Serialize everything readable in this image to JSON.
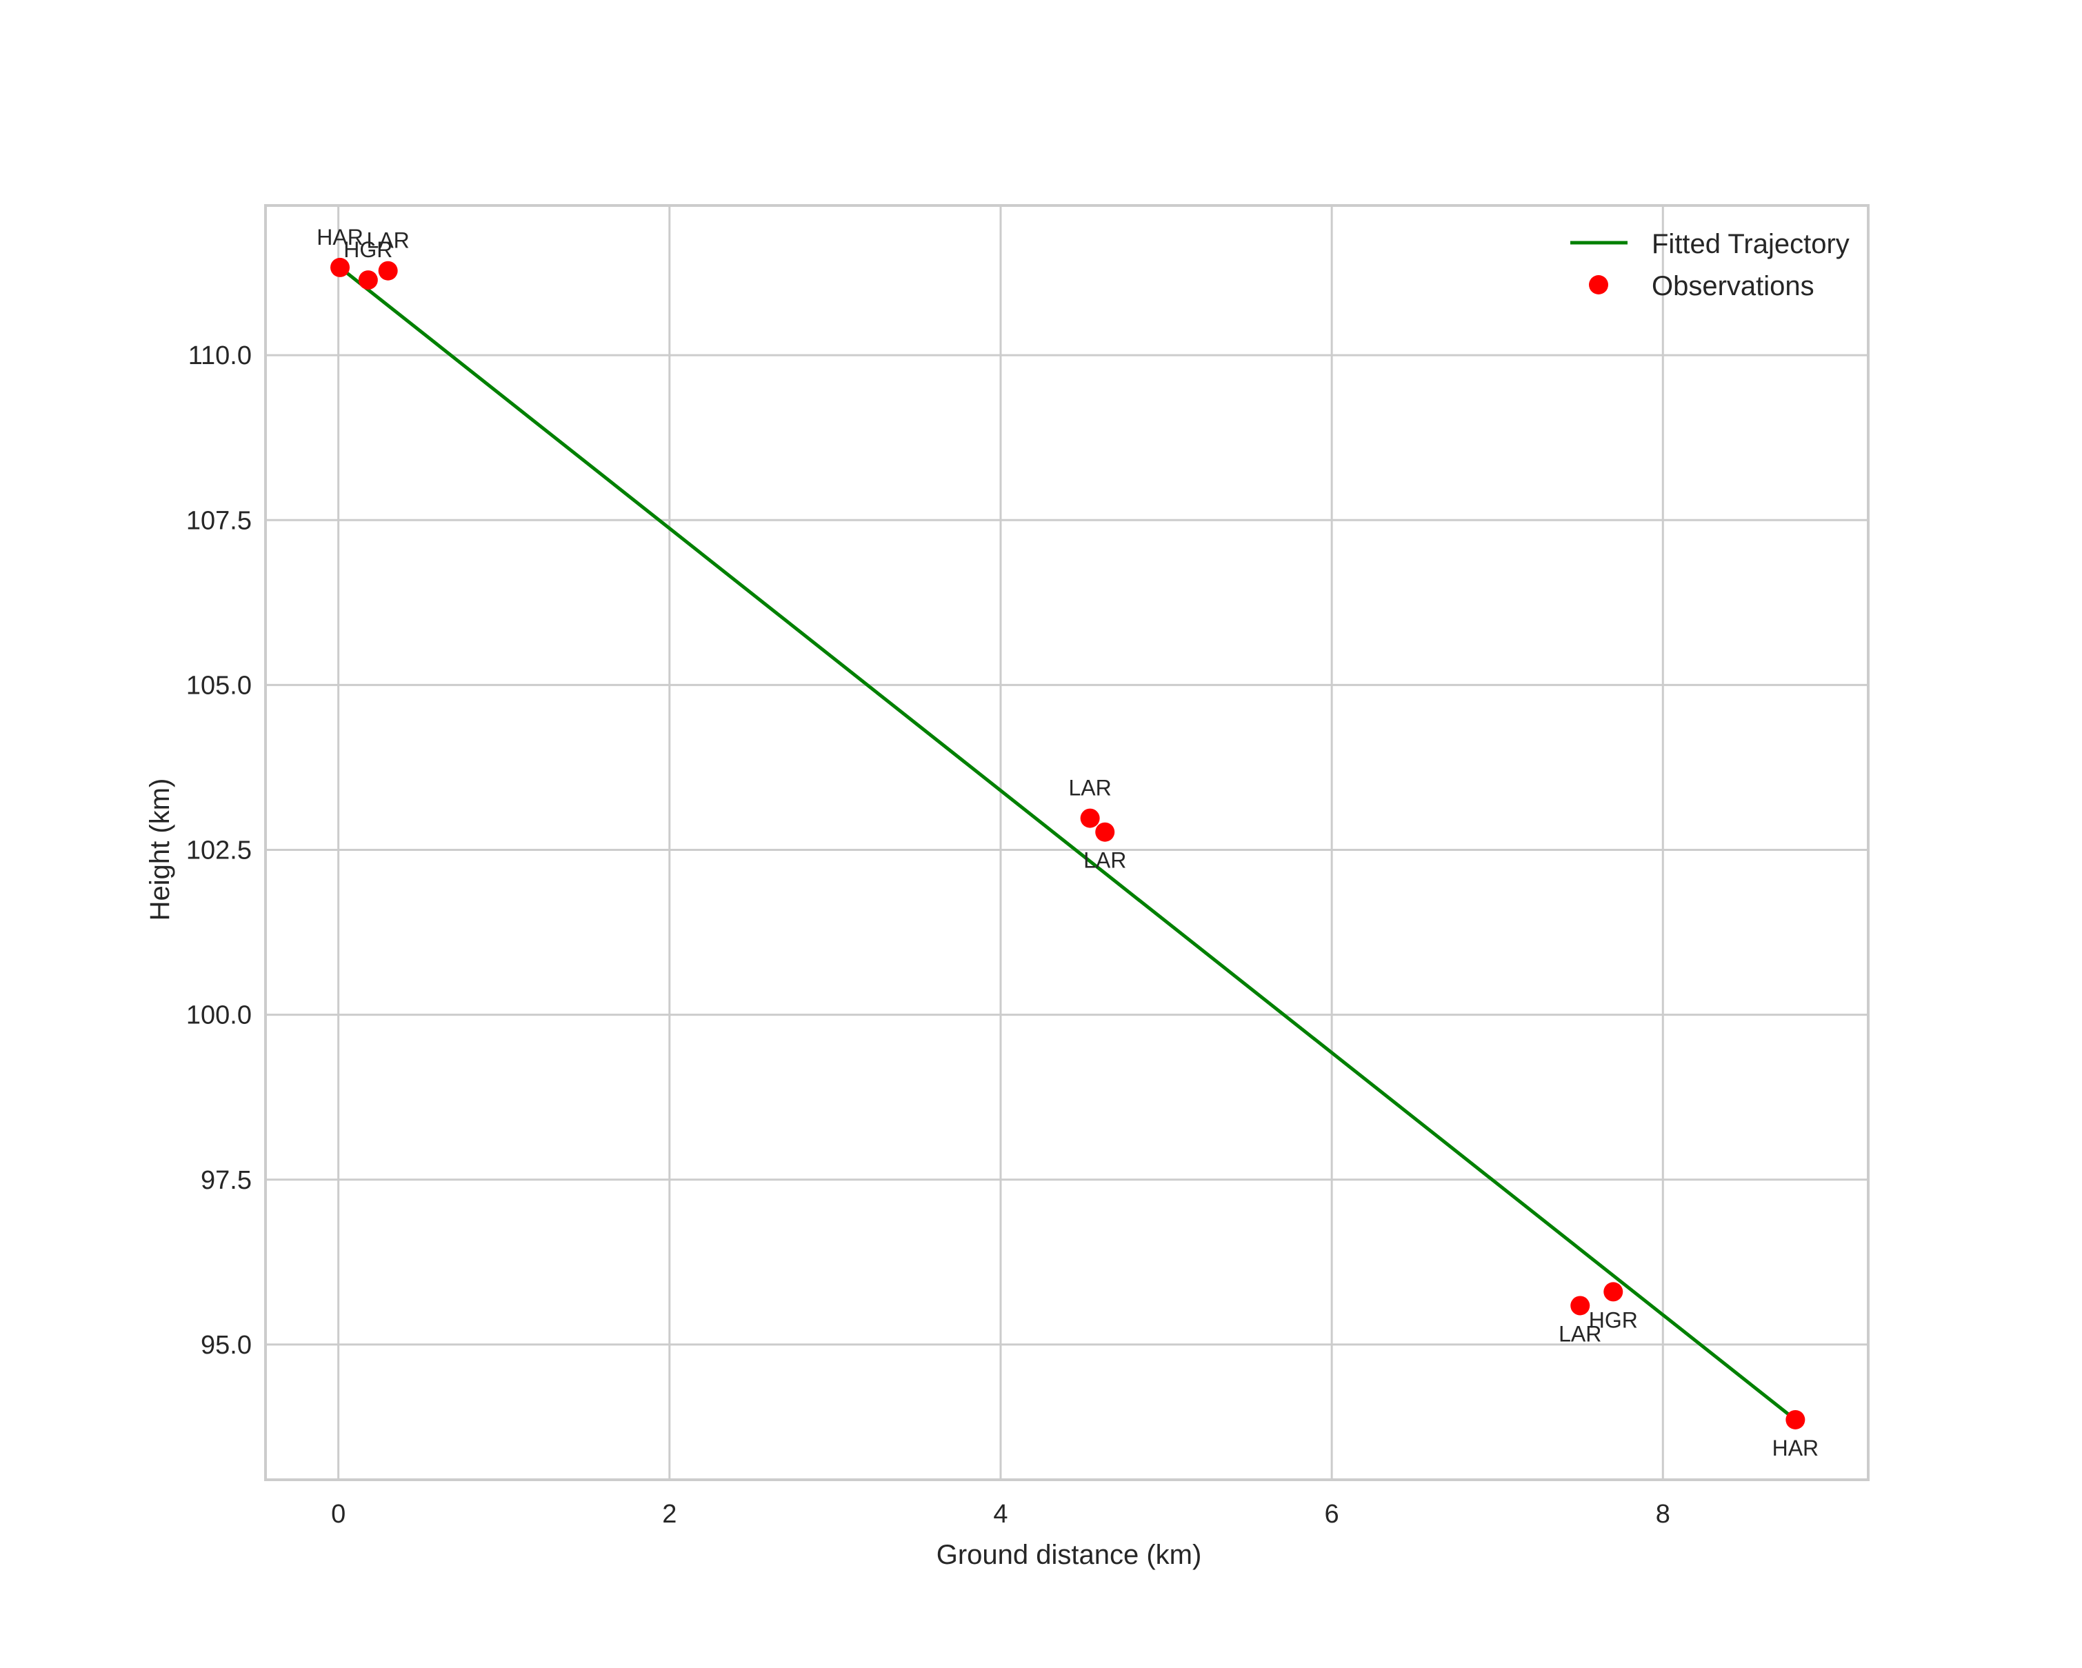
{
  "chart_data": {
    "type": "scatter",
    "title": "",
    "xlabel": "Ground distance (km)",
    "ylabel": "Height (km)",
    "xlim": [
      -0.44,
      9.24
    ],
    "ylim": [
      92.95,
      112.27
    ],
    "grid": true,
    "legend_position": "upper right",
    "x_ticks": [
      0,
      2,
      4,
      6,
      8
    ],
    "x_tick_labels": [
      "0",
      "2",
      "4",
      "6",
      "8"
    ],
    "y_ticks": [
      95.0,
      97.5,
      100.0,
      102.5,
      105.0,
      107.5,
      110.0
    ],
    "y_tick_labels": [
      "95.0",
      "97.5",
      "100.0",
      "102.5",
      "105.0",
      "107.5",
      "110.0"
    ],
    "series": [
      {
        "name": "Fitted Trajectory",
        "type": "line",
        "color": "#008000",
        "x": [
          0.01,
          8.8
        ],
        "y": [
          111.33,
          93.86
        ]
      },
      {
        "name": "Observations",
        "type": "scatter",
        "color": "#ff0000",
        "points": [
          {
            "x": 0.01,
            "y": 111.33,
            "label": "HAR",
            "label_pos": "above"
          },
          {
            "x": 0.18,
            "y": 111.14,
            "label": "HGR",
            "label_pos": "above"
          },
          {
            "x": 0.3,
            "y": 111.28,
            "label": "LAR",
            "label_pos": "above"
          },
          {
            "x": 4.54,
            "y": 102.98,
            "label": "LAR",
            "label_pos": "above"
          },
          {
            "x": 4.63,
            "y": 102.77,
            "label": "LAR",
            "label_pos": "below"
          },
          {
            "x": 7.5,
            "y": 95.59,
            "label": "LAR",
            "label_pos": "below"
          },
          {
            "x": 7.7,
            "y": 95.8,
            "label": "HGR",
            "label_pos": "below"
          },
          {
            "x": 8.8,
            "y": 93.86,
            "label": "HAR",
            "label_pos": "below"
          }
        ]
      }
    ]
  },
  "legend": {
    "items": [
      {
        "label": "Fitted Trajectory",
        "marker": "line",
        "color": "#008000"
      },
      {
        "label": "Observations",
        "marker": "circle",
        "color": "#ff0000"
      }
    ]
  },
  "axes": {
    "xlabel": "Ground distance (km)",
    "ylabel": "Height (km)"
  }
}
